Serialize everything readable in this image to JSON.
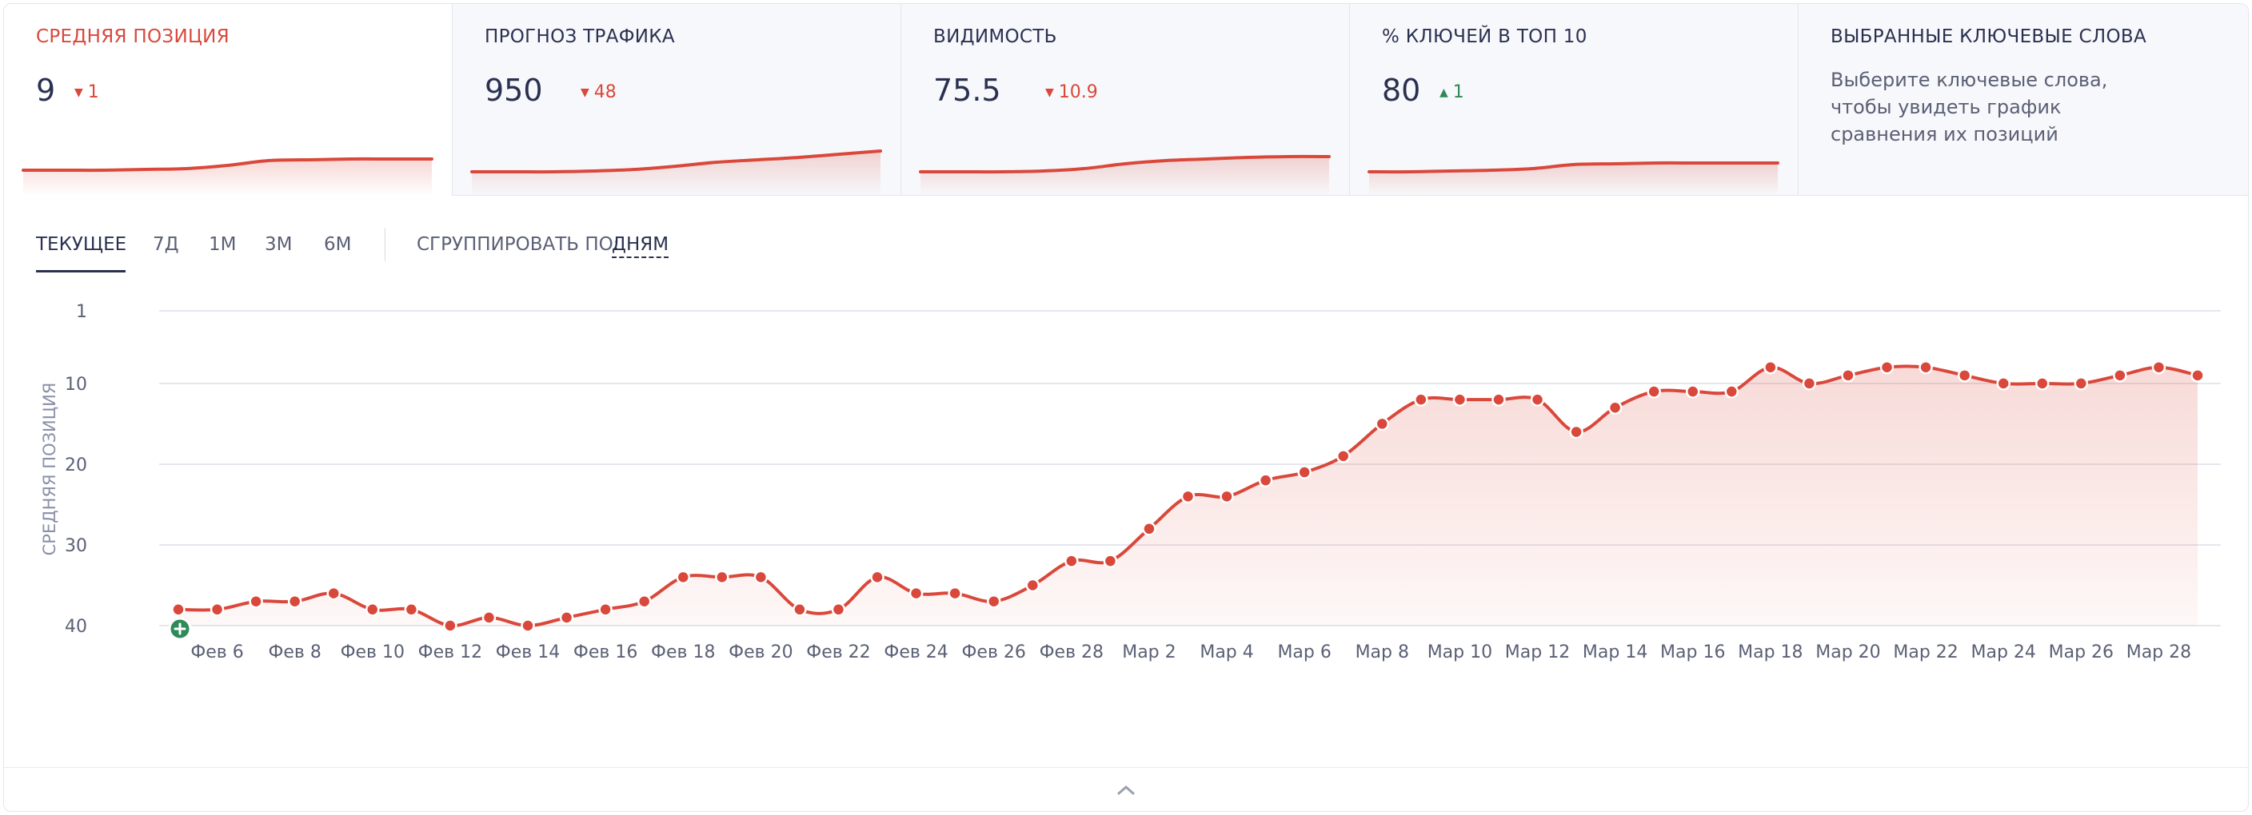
{
  "cards": [
    {
      "title": "СРЕДНЯЯ ПОЗИЦИЯ",
      "value": "9",
      "delta": "1",
      "delta_dir": "down",
      "spark": [
        38,
        38,
        38,
        37,
        36,
        32,
        26,
        25,
        24,
        24,
        24
      ]
    },
    {
      "title": "ПРОГНОЗ ТРАФИКА",
      "value": "950",
      "delta": "48",
      "delta_dir": "down",
      "spark": [
        40,
        40,
        40,
        39,
        37,
        33,
        28,
        25,
        22,
        18,
        14
      ]
    },
    {
      "title": "ВИДИМОСТЬ",
      "value": "75.5",
      "delta": "10.9",
      "delta_dir": "down",
      "spark": [
        40,
        40,
        40,
        39,
        36,
        30,
        26,
        24,
        22,
        21,
        21
      ]
    },
    {
      "title": "% КЛЮЧЕЙ В ТОП 10",
      "value": "80",
      "delta": "1",
      "delta_dir": "up",
      "spark": [
        40,
        40,
        39,
        38,
        36,
        31,
        30,
        29,
        29,
        29,
        29
      ]
    },
    {
      "title": "ВЫБРАННЫЕ КЛЮЧЕВЫЕ СЛОВА",
      "desc": "Выберите ключевые слова, чтобы увидеть график сравнения их позиций"
    }
  ],
  "colors": {
    "accent": "#d9483b",
    "up": "#2f8a5a",
    "text": "#2a3150",
    "muted": "#5b6075"
  },
  "periods": [
    "ТЕКУЩЕЕ",
    "7Д",
    "1М",
    "3М",
    "6М"
  ],
  "selected_period": "ТЕКУЩЕЕ",
  "group_label": "СГРУППИРОВАТЬ ПО:",
  "group_value": "ДНЯМ",
  "chart_data": {
    "type": "line",
    "ylabel": "СРЕДНЯЯ ПОЗИЦИЯ",
    "yticks": [
      1,
      10,
      20,
      30,
      40
    ],
    "ylim": [
      1,
      40
    ],
    "y_inverted": true,
    "x_tick_labels": [
      "Фев 6",
      "Фев 8",
      "Фев 10",
      "Фев 12",
      "Фев 14",
      "Фев 16",
      "Фев 18",
      "Фев 20",
      "Фев 22",
      "Фев 24",
      "Фев 26",
      "Фев 28",
      "Мар 2",
      "Мар 4",
      "Мар 6",
      "Мар 8",
      "Мар 10",
      "Мар 12",
      "Мар 14",
      "Мар 16",
      "Мар 18",
      "Мар 20",
      "Мар 22",
      "Мар 24",
      "Мар 26",
      "Мар 28"
    ],
    "x": [
      "Фев 5",
      "Фев 6",
      "Фев 7",
      "Фев 8",
      "Фев 9",
      "Фев 10",
      "Фев 11",
      "Фев 12",
      "Фев 13",
      "Фев 14",
      "Фев 15",
      "Фев 16",
      "Фев 17",
      "Фев 18",
      "Фев 19",
      "Фев 20",
      "Фев 21",
      "Фев 22",
      "Фев 23",
      "Фев 24",
      "Фев 25",
      "Фев 26",
      "Фев 27",
      "Фев 28",
      "Мар 1",
      "Мар 2",
      "Мар 3",
      "Мар 4",
      "Мар 5",
      "Мар 6",
      "Мар 7",
      "Мар 8",
      "Мар 9",
      "Мар 10",
      "Мар 11",
      "Мар 12",
      "Мар 13",
      "Мар 14",
      "Мар 15",
      "Мар 16",
      "Мар 17",
      "Мар 18",
      "Мар 19",
      "Мар 20",
      "Мар 21",
      "Мар 22",
      "Мар 23",
      "Мар 24",
      "Мар 25",
      "Мар 26",
      "Мар 27",
      "Мар 28",
      "Мар 29"
    ],
    "series": [
      {
        "values": [
          38,
          38,
          37,
          37,
          36,
          38,
          38,
          40,
          39,
          40,
          39,
          38,
          37,
          34,
          34,
          34,
          38,
          38,
          34,
          36,
          36,
          37,
          35,
          32,
          32,
          28,
          24,
          24,
          22,
          21,
          19,
          15,
          12,
          12,
          12,
          12,
          16,
          13,
          11,
          11,
          11,
          8,
          10,
          9,
          8,
          8,
          9,
          10,
          10,
          10,
          9,
          8,
          9
        ]
      }
    ],
    "grid": true
  }
}
